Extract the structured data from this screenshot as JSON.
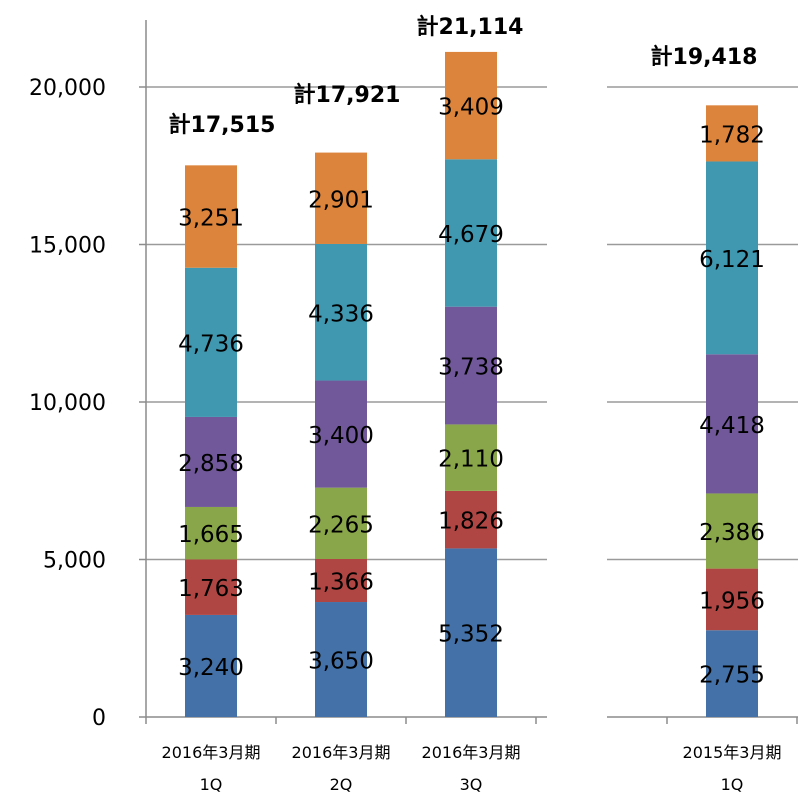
{
  "chart_data": {
    "type": "bar",
    "stacked": true,
    "ylim": [
      0,
      20000
    ],
    "yticks": [
      "0",
      "5,000",
      "10,000",
      "15,000",
      "20,000"
    ],
    "ytick_values": [
      0,
      5000,
      10000,
      15000,
      20000
    ],
    "grid": true,
    "colors": [
      "#4472a8",
      "#b04643",
      "#8aa64a",
      "#71589a",
      "#3f97b0",
      "#dc843c"
    ],
    "groups": [
      {
        "bars": [
          {
            "line1": "2016年3月期",
            "line2": "1Q",
            "values": [
              3240,
              1763,
              1665,
              2858,
              4736,
              3251
            ],
            "labels": [
              "3,240",
              "1,763",
              "1,665",
              "2,858",
              "4,736",
              "3,251"
            ],
            "total_label": "計17,515",
            "total": 17515
          },
          {
            "line1": "2016年3月期",
            "line2": "2Q",
            "values": [
              3650,
              1366,
              2265,
              3400,
              4336,
              2901
            ],
            "labels": [
              "3,650",
              "1,366",
              "2,265",
              "3,400",
              "4,336",
              "2,901"
            ],
            "total_label": "計17,921",
            "total": 17921
          },
          {
            "line1": "2016年3月期",
            "line2": "3Q",
            "values": [
              5352,
              1826,
              2110,
              3738,
              4679,
              3409
            ],
            "labels": [
              "5,352",
              "1,826",
              "2,110",
              "3,738",
              "4,679",
              "3,409"
            ],
            "total_label": "計21,114",
            "total": 21114
          }
        ]
      },
      {
        "bars": [
          {
            "line1": "2015年3月期",
            "line2": "1Q",
            "values": [
              2755,
              1956,
              2386,
              4418,
              6121,
              1782
            ],
            "labels": [
              "2,755",
              "1,956",
              "2,386",
              "4,418",
              "6,121",
              "1,782"
            ],
            "total_label": "計19,418",
            "total": 19418
          }
        ]
      }
    ]
  }
}
